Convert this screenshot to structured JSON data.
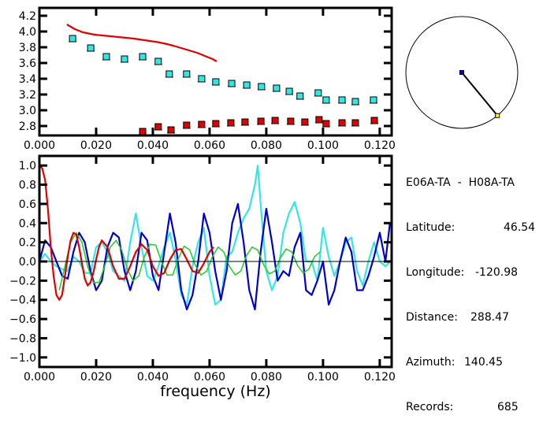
{
  "info": {
    "station_pair": "E06A-TA  -  H08A-TA",
    "rows": [
      {
        "label": "Latitude:",
        "value": "46.54"
      },
      {
        "label": "Longitude:",
        "value": "-120.98"
      },
      {
        "label": "Distance:",
        "value": "288.47"
      },
      {
        "label": "Azimuth:",
        "value": "140.45"
      },
      {
        "label": "Records:",
        "value": "685"
      }
    ]
  },
  "azimuth_diagram": {
    "azimuth_deg": 140.45,
    "center_color": "#0000cc",
    "end_color": "#ffff00"
  },
  "chart_data": [
    {
      "type": "scatter",
      "title": "",
      "xlabel": "",
      "ylabel": "",
      "xlim": [
        0.0,
        0.1242
      ],
      "ylim": [
        2.68,
        4.3
      ],
      "xticks": [
        0.0,
        0.02,
        0.04,
        0.06,
        0.08,
        0.1,
        0.12
      ],
      "xtick_labels": [
        "0.000",
        "0.020",
        "0.040",
        "0.060",
        "0.080",
        "0.100",
        "0.120"
      ],
      "yticks": [
        2.8,
        3.0,
        3.2,
        3.4,
        3.6,
        3.8,
        4.0,
        4.2
      ],
      "ytick_labels": [
        "2.8",
        "3.0",
        "3.2",
        "3.4",
        "3.6",
        "3.8",
        "4.0",
        "4.2"
      ],
      "grid": false,
      "series": [
        {
          "name": "reference-curve",
          "kind": "line",
          "color": "#e00000",
          "x": [
            0.0097,
            0.0111,
            0.0125,
            0.0139,
            0.0153,
            0.0167,
            0.0194,
            0.0222,
            0.025,
            0.0278,
            0.0306,
            0.0333,
            0.0361,
            0.0389,
            0.0417,
            0.0444,
            0.0472,
            0.05,
            0.0528,
            0.0556,
            0.0583,
            0.0611,
            0.0625
          ],
          "y": [
            4.09,
            4.06,
            4.03,
            4.01,
            3.99,
            3.98,
            3.96,
            3.95,
            3.94,
            3.93,
            3.92,
            3.91,
            3.895,
            3.88,
            3.865,
            3.845,
            3.82,
            3.79,
            3.76,
            3.73,
            3.69,
            3.65,
            3.62
          ]
        },
        {
          "name": "cyan-measurements",
          "kind": "points",
          "color": "#33e6e6",
          "x": [
            0.0117,
            0.0181,
            0.0236,
            0.03,
            0.0364,
            0.0419,
            0.0458,
            0.0519,
            0.0572,
            0.0622,
            0.0678,
            0.0731,
            0.0783,
            0.0836,
            0.0881,
            0.0919,
            0.0983,
            0.1011,
            0.1067,
            0.1114,
            0.1178
          ],
          "y": [
            3.91,
            3.79,
            3.68,
            3.65,
            3.68,
            3.62,
            3.46,
            3.46,
            3.4,
            3.36,
            3.34,
            3.32,
            3.3,
            3.28,
            3.24,
            3.18,
            3.22,
            3.13,
            3.13,
            3.11,
            3.13
          ]
        },
        {
          "name": "red-measurements",
          "kind": "points",
          "color": "#e00000",
          "x": [
            0.0364,
            0.0419,
            0.0464,
            0.0519,
            0.0572,
            0.0622,
            0.0675,
            0.0725,
            0.0781,
            0.0831,
            0.0886,
            0.0936,
            0.0986,
            0.1011,
            0.1067,
            0.1114,
            0.1181
          ],
          "y": [
            2.73,
            2.79,
            2.75,
            2.81,
            2.82,
            2.83,
            2.84,
            2.85,
            2.86,
            2.87,
            2.86,
            2.85,
            2.88,
            2.83,
            2.84,
            2.84,
            2.87
          ]
        }
      ]
    },
    {
      "type": "line",
      "title": "",
      "xlabel": "frequency (Hz)",
      "ylabel": "",
      "xlim": [
        0.0,
        0.1242
      ],
      "ylim": [
        -1.1,
        1.1
      ],
      "xticks": [
        0.0,
        0.02,
        0.04,
        0.06,
        0.08,
        0.1,
        0.12
      ],
      "xtick_labels": [
        "0.000",
        "0.020",
        "0.040",
        "0.060",
        "0.080",
        "0.100",
        "0.120"
      ],
      "yticks": [
        1.0,
        0.8,
        0.6,
        0.4,
        0.2,
        0.0,
        -0.2,
        -0.4,
        -0.6,
        -0.8,
        -1.0
      ],
      "ytick_labels": [
        "1.0",
        "0.8",
        "0.6",
        "0.4",
        "0.2",
        "0.0",
        "−0.2",
        "−0.4",
        "−0.6",
        "−0.8",
        "−1.0"
      ],
      "zero_line": true,
      "grid": false,
      "series": [
        {
          "name": "cyan-observed",
          "color": "#33e6e6",
          "x": [
            0.0,
            0.002,
            0.004,
            0.006,
            0.008,
            0.01,
            0.012,
            0.014,
            0.016,
            0.018,
            0.02,
            0.022,
            0.024,
            0.026,
            0.028,
            0.03,
            0.032,
            0.034,
            0.036,
            0.038,
            0.04,
            0.042,
            0.044,
            0.046,
            0.048,
            0.05,
            0.052,
            0.054,
            0.056,
            0.058,
            0.06,
            0.062,
            0.064,
            0.066,
            0.068,
            0.07,
            0.072,
            0.074,
            0.076,
            0.077,
            0.078,
            0.08,
            0.082,
            0.084,
            0.086,
            0.088,
            0.09,
            0.092,
            0.094,
            0.096,
            0.098,
            0.1,
            0.102,
            0.104,
            0.106,
            0.108,
            0.11,
            0.112,
            0.114,
            0.116,
            0.118,
            0.12,
            0.122,
            0.1236
          ],
          "y": [
            0.0,
            0.08,
            0.0,
            -0.05,
            -0.08,
            -0.1,
            0.05,
            0.0,
            -0.12,
            -0.12,
            0.15,
            0.2,
            0.1,
            -0.1,
            -0.15,
            -0.2,
            0.2,
            0.5,
            0.15,
            -0.15,
            -0.2,
            -0.05,
            0.15,
            0.3,
            0.02,
            -0.35,
            -0.45,
            -0.05,
            0.2,
            0.35,
            -0.15,
            -0.45,
            -0.4,
            0.05,
            0.1,
            0.3,
            0.45,
            0.55,
            0.8,
            1.0,
            0.6,
            -0.1,
            -0.3,
            -0.15,
            0.3,
            0.5,
            0.62,
            0.4,
            0.0,
            0.0,
            -0.2,
            0.35,
            0.05,
            -0.15,
            0.0,
            0.2,
            0.25,
            -0.1,
            -0.25,
            0.0,
            0.2,
            0.0,
            -0.05,
            0.0
          ]
        },
        {
          "name": "blue-observed",
          "color": "#0000cc",
          "x": [
            0.0,
            0.002,
            0.004,
            0.006,
            0.008,
            0.01,
            0.012,
            0.014,
            0.016,
            0.018,
            0.02,
            0.022,
            0.024,
            0.026,
            0.028,
            0.03,
            0.032,
            0.034,
            0.036,
            0.038,
            0.04,
            0.042,
            0.044,
            0.046,
            0.048,
            0.05,
            0.052,
            0.054,
            0.056,
            0.058,
            0.06,
            0.062,
            0.064,
            0.066,
            0.068,
            0.07,
            0.072,
            0.074,
            0.076,
            0.078,
            0.08,
            0.082,
            0.084,
            0.086,
            0.088,
            0.09,
            0.092,
            0.094,
            0.096,
            0.098,
            0.1,
            0.102,
            0.104,
            0.106,
            0.108,
            0.11,
            0.112,
            0.114,
            0.116,
            0.118,
            0.12,
            0.122,
            0.1236
          ],
          "y": [
            0.0,
            0.22,
            0.15,
            0.0,
            -0.15,
            -0.18,
            0.1,
            0.3,
            0.2,
            -0.1,
            -0.3,
            -0.2,
            0.15,
            0.3,
            0.25,
            -0.1,
            -0.3,
            -0.1,
            0.3,
            0.22,
            -0.15,
            -0.3,
            0.1,
            0.5,
            0.2,
            -0.3,
            -0.5,
            -0.35,
            0.0,
            0.5,
            0.3,
            -0.1,
            -0.4,
            -0.1,
            0.4,
            0.6,
            0.2,
            -0.3,
            -0.5,
            0.1,
            0.55,
            0.2,
            -0.2,
            -0.1,
            -0.15,
            0.15,
            0.3,
            -0.3,
            -0.35,
            -0.2,
            0.0,
            -0.45,
            -0.3,
            0.0,
            0.25,
            0.1,
            -0.3,
            -0.3,
            -0.15,
            0.05,
            0.3,
            0.0,
            0.4
          ]
        },
        {
          "name": "green-model",
          "color": "#22cc22",
          "x": [
            0.007,
            0.009,
            0.011,
            0.013,
            0.015,
            0.017,
            0.019,
            0.021,
            0.023,
            0.025,
            0.027,
            0.029,
            0.031,
            0.033,
            0.035,
            0.037,
            0.039,
            0.041,
            0.043,
            0.045,
            0.047,
            0.049,
            0.051,
            0.053,
            0.055,
            0.057,
            0.059,
            0.061,
            0.063,
            0.065,
            0.067,
            0.069,
            0.071,
            0.073,
            0.075,
            0.077,
            0.079,
            0.081,
            0.083,
            0.085,
            0.087,
            0.089,
            0.091,
            0.093,
            0.095,
            0.097,
            0.099
          ],
          "y": [
            -0.3,
            -0.05,
            0.2,
            0.3,
            0.2,
            -0.05,
            -0.22,
            -0.22,
            -0.05,
            0.15,
            0.22,
            0.12,
            -0.08,
            -0.2,
            -0.15,
            0.05,
            0.18,
            0.17,
            0.0,
            -0.14,
            -0.14,
            0.03,
            0.16,
            0.12,
            -0.04,
            -0.14,
            -0.1,
            0.05,
            0.15,
            0.1,
            -0.05,
            -0.14,
            -0.1,
            0.06,
            0.15,
            0.12,
            -0.03,
            -0.13,
            -0.1,
            0.04,
            0.13,
            0.1,
            -0.04,
            -0.12,
            -0.08,
            0.05,
            0.1
          ]
        },
        {
          "name": "red-model",
          "color": "#e00000",
          "x": [
            0.0,
            0.001,
            0.002,
            0.003,
            0.004,
            0.005,
            0.006,
            0.007,
            0.008,
            0.009,
            0.01,
            0.011,
            0.012,
            0.013,
            0.014,
            0.015,
            0.016,
            0.017,
            0.018,
            0.019,
            0.02,
            0.021,
            0.022,
            0.024,
            0.026,
            0.028,
            0.03,
            0.032,
            0.034,
            0.036,
            0.038,
            0.04,
            0.042,
            0.044,
            0.046,
            0.048,
            0.05,
            0.052,
            0.054,
            0.056,
            0.058,
            0.06,
            0.0614
          ],
          "y": [
            1.0,
            0.97,
            0.85,
            0.55,
            0.15,
            -0.15,
            -0.35,
            -0.4,
            -0.35,
            -0.15,
            0.05,
            0.22,
            0.3,
            0.28,
            0.15,
            -0.02,
            -0.18,
            -0.25,
            -0.22,
            -0.12,
            0.02,
            0.15,
            0.22,
            0.15,
            -0.05,
            -0.18,
            -0.18,
            -0.05,
            0.1,
            0.18,
            0.12,
            -0.05,
            -0.15,
            -0.12,
            0.02,
            0.12,
            0.13,
            0.02,
            -0.1,
            -0.12,
            -0.02,
            0.1,
            0.15
          ]
        }
      ]
    }
  ]
}
